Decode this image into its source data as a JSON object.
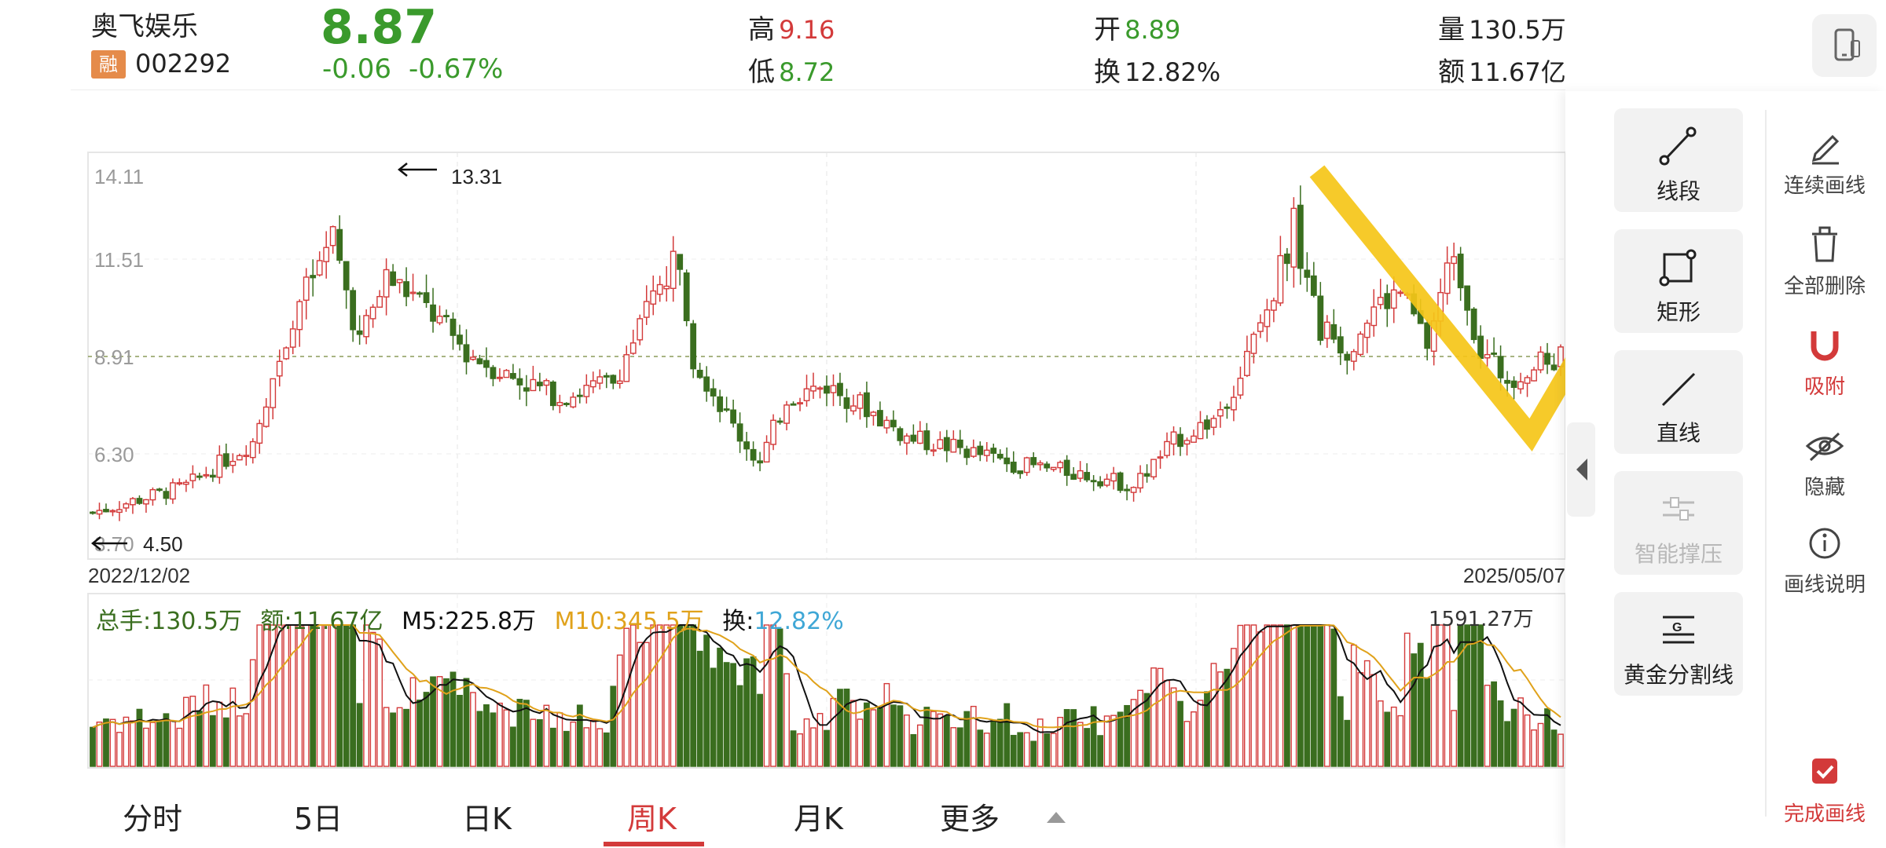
{
  "header": {
    "name": "奥飞娱乐",
    "rong_badge": "融",
    "code": "002292",
    "price": "8.87",
    "change": "-0.06",
    "change_pct": "-0.67%",
    "high_label": "高",
    "high_value": "9.16",
    "low_label": "低",
    "low_value": "8.72",
    "open_label": "开",
    "open_value": "8.89",
    "turnover_label": "换",
    "turnover_value": "12.82%",
    "volume_label": "量",
    "volume_value": "130.5万",
    "amount_label": "额",
    "amount_value": "11.67亿",
    "phone_icon": "phone-rotate-icon"
  },
  "kchart": {
    "y_labels": [
      "14.11",
      "11.51",
      "8.91",
      "6.30",
      "3.70"
    ],
    "max_label": "13.31",
    "min_label": "4.50",
    "start_date": "2022/12/02",
    "end_date": "2025/05/07",
    "ref_price": 8.91
  },
  "volume": {
    "total_label": "总手:130.5万",
    "amount_label": "额:11.67亿",
    "m5_label": "M5:225.8万",
    "m10_label": "M10:345.5万",
    "turnover_key": "换:",
    "turnover_value": "12.82%",
    "max_label": "1591.27万"
  },
  "tabs": [
    {
      "label": "分时"
    },
    {
      "label": "5日"
    },
    {
      "label": "日K"
    },
    {
      "label": "周K"
    },
    {
      "label": "月K"
    },
    {
      "label": "更多"
    }
  ],
  "tools": [
    {
      "label": "线段",
      "icon": "line-segment-icon"
    },
    {
      "label": "矩形",
      "icon": "rectangle-icon"
    },
    {
      "label": "直线",
      "icon": "straight-line-icon"
    },
    {
      "label": "智能撑压",
      "icon": "support-pressure-icon"
    },
    {
      "label": "黄金分割线",
      "icon": "golden-ratio-icon"
    }
  ],
  "side": [
    {
      "label": "连续画线",
      "icon": "continuous-pen-icon"
    },
    {
      "label": "全部删除",
      "icon": "trash-icon"
    },
    {
      "label": "吸附",
      "icon": "magnet-icon"
    },
    {
      "label": "隐藏",
      "icon": "eye-hidden-icon"
    },
    {
      "label": "画线说明",
      "icon": "info-icon"
    },
    {
      "label": "完成画线",
      "icon": "check-done-icon"
    }
  ],
  "colors": {
    "up": "#d33a3a",
    "down": "#3a6e1f",
    "m5": "#111111",
    "m10": "#e0a21b",
    "drawing": "#f5c518",
    "accent": "#d33a3a"
  }
}
